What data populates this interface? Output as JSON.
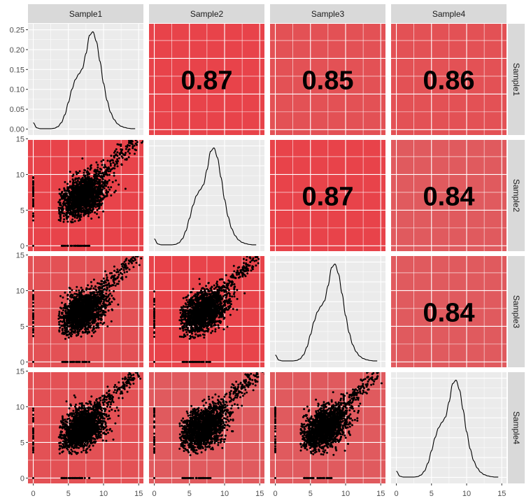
{
  "chart_data": {
    "type": "scatter",
    "title": "",
    "xlabel": "",
    "ylabel": "",
    "layout": "pairs-matrix",
    "variables": [
      "Sample1",
      "Sample2",
      "Sample3",
      "Sample4"
    ],
    "xlim": [
      0,
      15
    ],
    "x_ticks": [
      "0",
      "5",
      "10",
      "15"
    ],
    "scatter_ylim": [
      0,
      15
    ],
    "scatter_y_ticks": [
      "0",
      "5",
      "10",
      "15"
    ],
    "density_ylim": [
      0,
      0.25
    ],
    "density_y_ticks": [
      "0.00",
      "0.05",
      "0.10",
      "0.15",
      "0.20",
      "0.25"
    ],
    "grid": true,
    "correlations": [
      {
        "row": "Sample1",
        "col": "Sample2",
        "value": "0.87"
      },
      {
        "row": "Sample1",
        "col": "Sample3",
        "value": "0.85"
      },
      {
        "row": "Sample1",
        "col": "Sample4",
        "value": "0.86"
      },
      {
        "row": "Sample2",
        "col": "Sample3",
        "value": "0.87"
      },
      {
        "row": "Sample2",
        "col": "Sample4",
        "value": "0.84"
      },
      {
        "row": "Sample3",
        "col": "Sample4",
        "value": "0.84"
      }
    ],
    "density_curve": {
      "x": [
        0,
        0.5,
        1,
        1.5,
        2,
        2.5,
        3,
        3.5,
        4,
        4.5,
        5,
        5.5,
        6,
        6.5,
        7,
        7.5,
        8,
        8.5,
        9,
        9.5,
        10,
        10.5,
        11,
        11.5,
        12,
        12.5,
        13,
        13.5,
        14,
        14.5
      ],
      "y": [
        0.016,
        0.003,
        0.001,
        0.001,
        0.001,
        0.001,
        0.002,
        0.006,
        0.016,
        0.036,
        0.067,
        0.1,
        0.125,
        0.139,
        0.152,
        0.19,
        0.236,
        0.245,
        0.22,
        0.17,
        0.115,
        0.072,
        0.042,
        0.024,
        0.013,
        0.007,
        0.004,
        0.002,
        0.001,
        0.001
      ]
    },
    "scatter_cloud": {
      "center": [
        7,
        7
      ],
      "spread_major": 1.6,
      "spread_minor": 1.1,
      "extends_to": [
        14.6,
        14.8
      ],
      "zero_rows_x_range": [
        4,
        8
      ],
      "zero_cols_y_range": [
        3.5,
        10
      ]
    },
    "colors": {
      "panel_bg": "#ebebeb",
      "grid_line": "#ffffff",
      "strip_bg": "#d9d9d9",
      "corr_high": "#e8434a",
      "corr_mid": "#e35155",
      "corr_low": "#e05a5e",
      "density_line": "#000000",
      "point": "#000000",
      "tick_text": "#4d4d4d",
      "axis_tick": "#333333"
    }
  }
}
